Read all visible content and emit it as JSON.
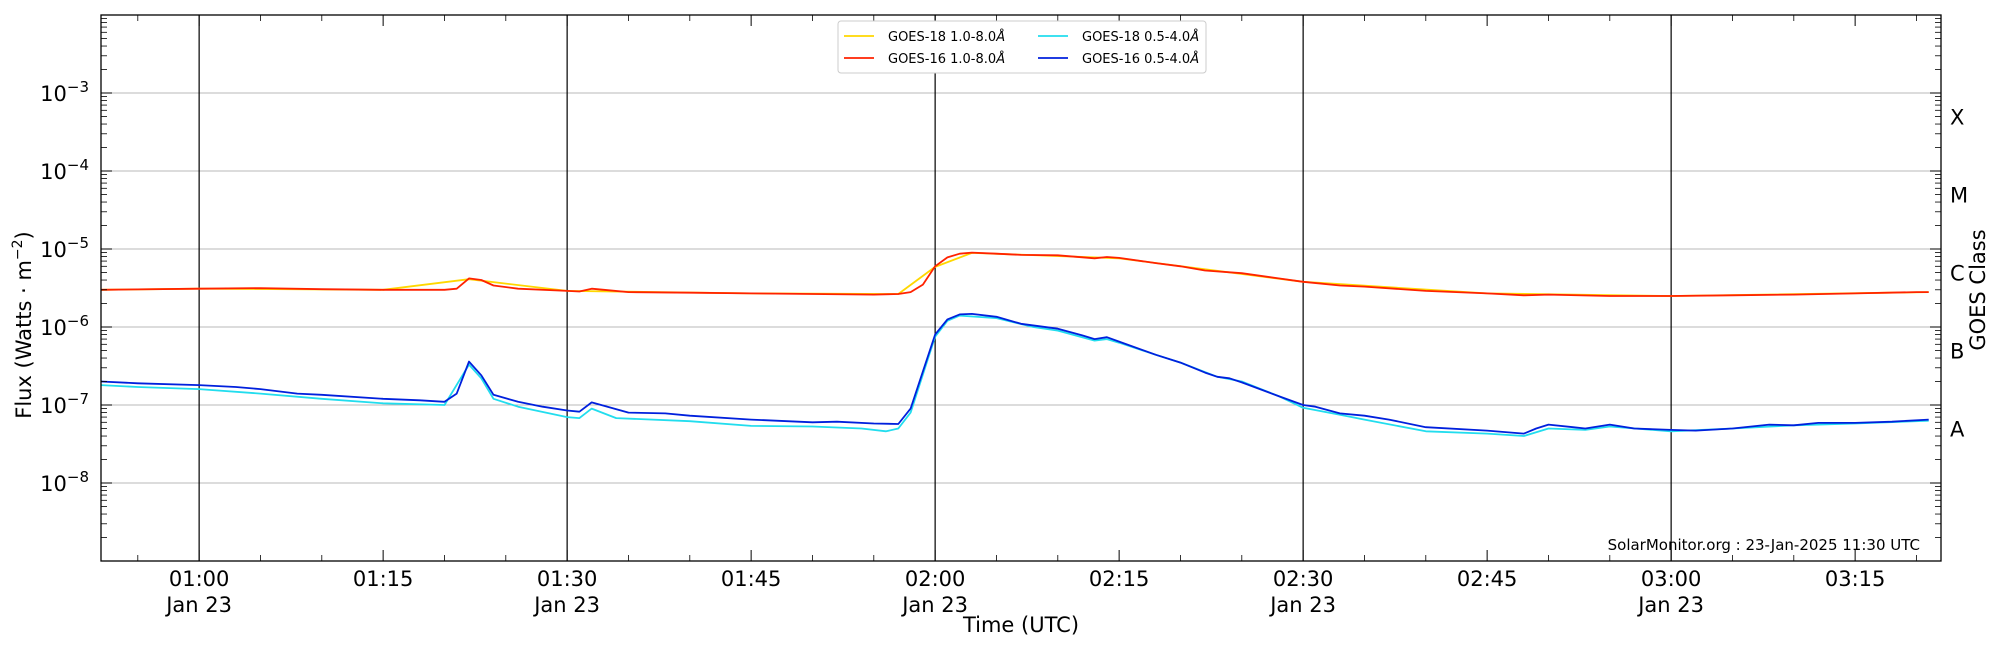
{
  "chart_data": {
    "type": "line",
    "title": "",
    "xlabel": "Time (UTC)",
    "ylabel": "Flux (Watts · m",
    "ylabel_sup": "−2",
    "ylabel_close": ")",
    "right_label": "GOES Class",
    "yscale": "log",
    "ylim": [
      1e-09,
      0.01
    ],
    "xlim": [
      "00:52",
      "03:22"
    ],
    "x_ticks": [
      {
        "t": "01:00",
        "line1": "01:00",
        "line2": "Jan 23"
      },
      {
        "t": "01:15",
        "line1": "01:15",
        "line2": ""
      },
      {
        "t": "01:30",
        "line1": "01:30",
        "line2": "Jan 23"
      },
      {
        "t": "01:45",
        "line1": "01:45",
        "line2": ""
      },
      {
        "t": "02:00",
        "line1": "02:00",
        "line2": "Jan 23"
      },
      {
        "t": "02:15",
        "line1": "02:15",
        "line2": ""
      },
      {
        "t": "02:30",
        "line1": "02:30",
        "line2": "Jan 23"
      },
      {
        "t": "02:45",
        "line1": "02:45",
        "line2": ""
      },
      {
        "t": "03:00",
        "line1": "03:00",
        "line2": "Jan 23"
      },
      {
        "t": "03:15",
        "line1": "03:15",
        "line2": ""
      }
    ],
    "y_ticks": [
      {
        "exp": -8,
        "base": "10",
        "sup": "−8"
      },
      {
        "exp": -7,
        "base": "10",
        "sup": "−7"
      },
      {
        "exp": -6,
        "base": "10",
        "sup": "−6"
      },
      {
        "exp": -5,
        "base": "10",
        "sup": "−5"
      },
      {
        "exp": -4,
        "base": "10",
        "sup": "−4"
      },
      {
        "exp": -3,
        "base": "10",
        "sup": "−3"
      }
    ],
    "goes_classes": [
      {
        "label": "A",
        "flux": 5e-08
      },
      {
        "label": "B",
        "flux": 5e-07
      },
      {
        "label": "C",
        "flux": 5e-06
      },
      {
        "label": "M",
        "flux": 5e-05
      },
      {
        "label": "X",
        "flux": 0.0005
      }
    ],
    "vertical_lines": [
      "01:00",
      "01:30",
      "02:00",
      "02:30",
      "03:00"
    ],
    "grid": "horizontal at decades",
    "legend_position": "top-center",
    "legend": [
      {
        "label": "GOES-18 1.0-8.0",
        "unit": "Å",
        "color": "#FFD700"
      },
      {
        "label": "GOES-16 1.0-8.0",
        "unit": "Å",
        "color": "#FF2200"
      },
      {
        "label": "GOES-18 0.5-4.0",
        "unit": "Å",
        "color": "#22DDEE"
      },
      {
        "label": "GOES-16 0.5-4.0",
        "unit": "Å",
        "color": "#0020DD"
      }
    ],
    "credit": "SolarMonitor.org : 23-Jan-2025 11:30 UTC",
    "series": [
      {
        "name": "GOES-16 1.0-8.0Å",
        "color": "#FF2200",
        "points": [
          [
            "00:52",
            3e-06
          ],
          [
            "01:00",
            3.1e-06
          ],
          [
            "01:05",
            3.15e-06
          ],
          [
            "01:10",
            3.05e-06
          ],
          [
            "01:15",
            3e-06
          ],
          [
            "01:20",
            3e-06
          ],
          [
            "01:21",
            3.1e-06
          ],
          [
            "01:22",
            4.2e-06
          ],
          [
            "01:23",
            4e-06
          ],
          [
            "01:24",
            3.4e-06
          ],
          [
            "01:26",
            3.1e-06
          ],
          [
            "01:30",
            2.9e-06
          ],
          [
            "01:31",
            2.85e-06
          ],
          [
            "01:32",
            3.1e-06
          ],
          [
            "01:33",
            3e-06
          ],
          [
            "01:35",
            2.8e-06
          ],
          [
            "01:40",
            2.75e-06
          ],
          [
            "01:45",
            2.7e-06
          ],
          [
            "01:50",
            2.65e-06
          ],
          [
            "01:55",
            2.6e-06
          ],
          [
            "01:57",
            2.65e-06
          ],
          [
            "01:58",
            2.8e-06
          ],
          [
            "01:59",
            3.5e-06
          ],
          [
            "02:00",
            6e-06
          ],
          [
            "02:01",
            7.8e-06
          ],
          [
            "02:02",
            8.7e-06
          ],
          [
            "02:03",
            9e-06
          ],
          [
            "02:05",
            8.7e-06
          ],
          [
            "02:07",
            8.4e-06
          ],
          [
            "02:10",
            8.3e-06
          ],
          [
            "02:13",
            7.6e-06
          ],
          [
            "02:14",
            7.9e-06
          ],
          [
            "02:15",
            7.7e-06
          ],
          [
            "02:18",
            6.6e-06
          ],
          [
            "02:20",
            6e-06
          ],
          [
            "02:22",
            5.3e-06
          ],
          [
            "02:25",
            4.9e-06
          ],
          [
            "02:28",
            4.2e-06
          ],
          [
            "02:30",
            3.8e-06
          ],
          [
            "02:33",
            3.4e-06
          ],
          [
            "02:35",
            3.3e-06
          ],
          [
            "02:40",
            2.9e-06
          ],
          [
            "02:45",
            2.7e-06
          ],
          [
            "02:48",
            2.55e-06
          ],
          [
            "02:50",
            2.6e-06
          ],
          [
            "02:55",
            2.5e-06
          ],
          [
            "03:00",
            2.5e-06
          ],
          [
            "03:05",
            2.55e-06
          ],
          [
            "03:10",
            2.6e-06
          ],
          [
            "03:15",
            2.7e-06
          ],
          [
            "03:20",
            2.8e-06
          ],
          [
            "03:21",
            2.8e-06
          ]
        ]
      },
      {
        "name": "GOES-18 1.0-8.0Å",
        "color": "#FFD700",
        "points": [
          [
            "00:52",
            3e-06
          ],
          [
            "01:00",
            3.1e-06
          ],
          [
            "01:15",
            3e-06
          ],
          [
            "01:22",
            4.1e-06
          ],
          [
            "01:30",
            2.9e-06
          ],
          [
            "01:45",
            2.7e-06
          ],
          [
            "01:57",
            2.65e-06
          ],
          [
            "02:00",
            5.9e-06
          ],
          [
            "02:03",
            8.9e-06
          ],
          [
            "02:15",
            7.6e-06
          ],
          [
            "02:30",
            3.8e-06
          ],
          [
            "02:45",
            2.7e-06
          ],
          [
            "03:00",
            2.5e-06
          ],
          [
            "03:21",
            2.8e-06
          ]
        ]
      },
      {
        "name": "GOES-18 0.5-4.0Å",
        "color": "#22DDEE",
        "points": [
          [
            "00:52",
            1.8e-07
          ],
          [
            "00:55",
            1.7e-07
          ],
          [
            "01:00",
            1.6e-07
          ],
          [
            "01:05",
            1.4e-07
          ],
          [
            "01:10",
            1.2e-07
          ],
          [
            "01:15",
            1.05e-07
          ],
          [
            "01:20",
            1e-07
          ],
          [
            "01:22",
            3.3e-07
          ],
          [
            "01:23",
            2.2e-07
          ],
          [
            "01:24",
            1.2e-07
          ],
          [
            "01:26",
            9.5e-08
          ],
          [
            "01:30",
            7e-08
          ],
          [
            "01:31",
            6.8e-08
          ],
          [
            "01:32",
            9e-08
          ],
          [
            "01:34",
            6.8e-08
          ],
          [
            "01:40",
            6.2e-08
          ],
          [
            "01:45",
            5.4e-08
          ],
          [
            "01:50",
            5.3e-08
          ],
          [
            "01:54",
            5e-08
          ],
          [
            "01:56",
            4.6e-08
          ],
          [
            "01:57",
            5e-08
          ],
          [
            "01:58",
            8e-08
          ],
          [
            "02:00",
            7.5e-07
          ],
          [
            "02:01",
            1.2e-06
          ],
          [
            "02:02",
            1.4e-06
          ],
          [
            "02:05",
            1.3e-06
          ],
          [
            "02:08",
            1e-06
          ],
          [
            "02:10",
            9e-07
          ],
          [
            "02:13",
            6.7e-07
          ],
          [
            "02:14",
            7e-07
          ],
          [
            "02:15",
            6.3e-07
          ],
          [
            "02:18",
            4.4e-07
          ],
          [
            "02:20",
            3.5e-07
          ],
          [
            "02:23",
            2.3e-07
          ],
          [
            "02:25",
            2e-07
          ],
          [
            "02:28",
            1.3e-07
          ],
          [
            "02:30",
            9.2e-08
          ],
          [
            "02:33",
            7.5e-08
          ],
          [
            "02:35",
            6.5e-08
          ],
          [
            "02:40",
            4.6e-08
          ],
          [
            "02:45",
            4.3e-08
          ],
          [
            "02:48",
            4e-08
          ],
          [
            "02:50",
            5e-08
          ],
          [
            "02:53",
            4.8e-08
          ],
          [
            "02:55",
            5.3e-08
          ],
          [
            "03:00",
            4.6e-08
          ],
          [
            "03:05",
            5e-08
          ],
          [
            "03:10",
            5.5e-08
          ],
          [
            "03:15",
            5.8e-08
          ],
          [
            "03:21",
            6.3e-08
          ]
        ]
      },
      {
        "name": "GOES-16 0.5-4.0Å",
        "color": "#0020DD",
        "points": [
          [
            "00:52",
            2e-07
          ],
          [
            "00:55",
            1.9e-07
          ],
          [
            "01:00",
            1.8e-07
          ],
          [
            "01:03",
            1.7e-07
          ],
          [
            "01:05",
            1.6e-07
          ],
          [
            "01:08",
            1.4e-07
          ],
          [
            "01:10",
            1.35e-07
          ],
          [
            "01:15",
            1.2e-07
          ],
          [
            "01:18",
            1.15e-07
          ],
          [
            "01:20",
            1.1e-07
          ],
          [
            "01:21",
            1.4e-07
          ],
          [
            "01:22",
            3.6e-07
          ],
          [
            "01:23",
            2.4e-07
          ],
          [
            "01:24",
            1.35e-07
          ],
          [
            "01:26",
            1.1e-07
          ],
          [
            "01:28",
            9.5e-08
          ],
          [
            "01:30",
            8.5e-08
          ],
          [
            "01:31",
            8.2e-08
          ],
          [
            "01:32",
            1.08e-07
          ],
          [
            "01:33",
            9.8e-08
          ],
          [
            "01:35",
            8e-08
          ],
          [
            "01:38",
            7.8e-08
          ],
          [
            "01:40",
            7.3e-08
          ],
          [
            "01:45",
            6.5e-08
          ],
          [
            "01:50",
            6e-08
          ],
          [
            "01:52",
            6.1e-08
          ],
          [
            "01:55",
            5.8e-08
          ],
          [
            "01:57",
            5.7e-08
          ],
          [
            "01:58",
            9e-08
          ],
          [
            "02:00",
            8e-07
          ],
          [
            "02:01",
            1.25e-06
          ],
          [
            "02:02",
            1.45e-06
          ],
          [
            "02:03",
            1.47e-06
          ],
          [
            "02:05",
            1.35e-06
          ],
          [
            "02:07",
            1.1e-06
          ],
          [
            "02:10",
            9.5e-07
          ],
          [
            "02:12",
            7.8e-07
          ],
          [
            "02:13",
            7e-07
          ],
          [
            "02:14",
            7.4e-07
          ],
          [
            "02:15",
            6.5e-07
          ],
          [
            "02:18",
            4.4e-07
          ],
          [
            "02:20",
            3.5e-07
          ],
          [
            "02:22",
            2.6e-07
          ],
          [
            "02:23",
            2.3e-07
          ],
          [
            "02:24",
            2.2e-07
          ],
          [
            "02:25",
            1.95e-07
          ],
          [
            "02:28",
            1.3e-07
          ],
          [
            "02:30",
            1e-07
          ],
          [
            "02:31",
            9.5e-08
          ],
          [
            "02:33",
            7.8e-08
          ],
          [
            "02:35",
            7.3e-08
          ],
          [
            "02:37",
            6.5e-08
          ],
          [
            "02:40",
            5.2e-08
          ],
          [
            "02:45",
            4.7e-08
          ],
          [
            "02:48",
            4.3e-08
          ],
          [
            "02:49",
            5e-08
          ],
          [
            "02:50",
            5.6e-08
          ],
          [
            "02:52",
            5.2e-08
          ],
          [
            "02:53",
            5e-08
          ],
          [
            "02:55",
            5.6e-08
          ],
          [
            "02:57",
            5e-08
          ],
          [
            "03:00",
            4.8e-08
          ],
          [
            "03:02",
            4.7e-08
          ],
          [
            "03:05",
            5e-08
          ],
          [
            "03:08",
            5.6e-08
          ],
          [
            "03:10",
            5.5e-08
          ],
          [
            "03:12",
            5.9e-08
          ],
          [
            "03:15",
            5.9e-08
          ],
          [
            "03:18",
            6.1e-08
          ],
          [
            "03:21",
            6.5e-08
          ]
        ]
      }
    ]
  }
}
